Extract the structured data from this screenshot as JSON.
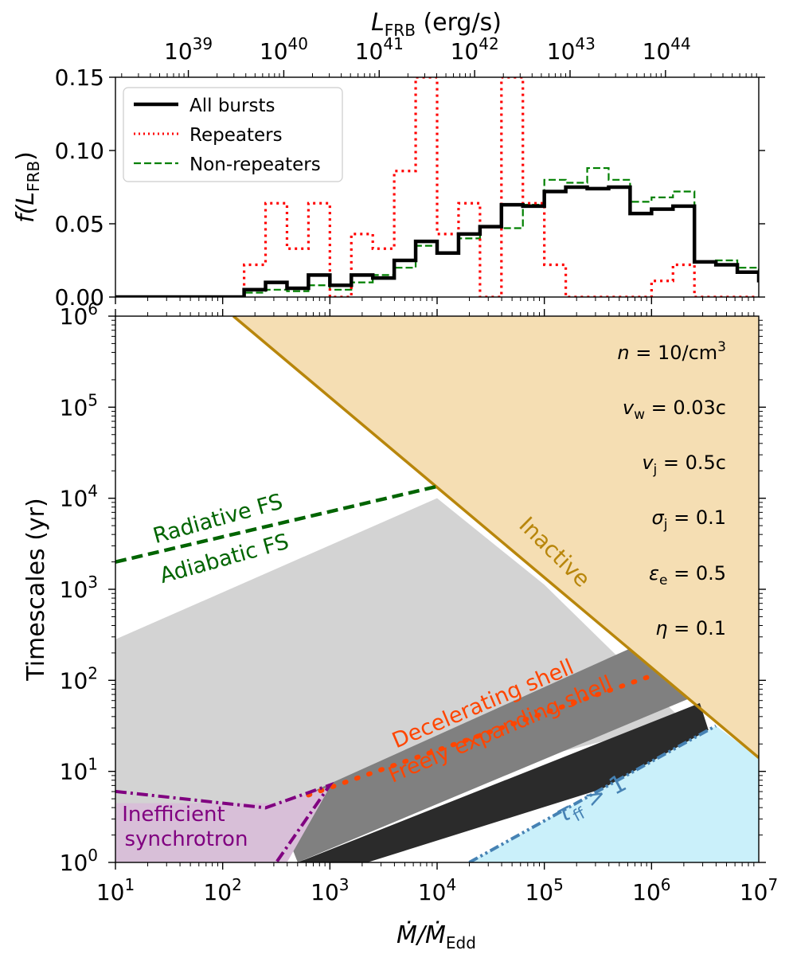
{
  "chart_data": [
    {
      "type": "step-histogram",
      "xlabel_main": "L",
      "xlabel_sub": "FRB",
      "xlabel_unit": " (erg/s)",
      "ylabel_main": "f(L",
      "ylabel_sub": "FRB",
      "ylabel_close": ")",
      "xscale": "log",
      "xlim": [
        1,
        7
      ],
      "xlim_note": "log10 of Mdot/Mdot_Edd (shared bottom axis)",
      "ylim": [
        0,
        0.15
      ],
      "yticks": [
        "0.00",
        "0.05",
        "0.10",
        "0.15"
      ],
      "top_axis_ticks": [
        {
          "exp": "39",
          "log_mdot": 1.68
        },
        {
          "exp": "40",
          "log_mdot": 2.57
        },
        {
          "exp": "41",
          "log_mdot": 3.46
        },
        {
          "exp": "42",
          "log_mdot": 4.35
        },
        {
          "exp": "43",
          "log_mdot": 5.25
        },
        {
          "exp": "44",
          "log_mdot": 6.14
        }
      ],
      "legend": {
        "position": "upper-left",
        "entries": [
          "All bursts",
          "Repeaters",
          "Non-repeaters"
        ]
      },
      "bin_edges_log": [
        1.0,
        2.2,
        2.4,
        2.6,
        2.8,
        3.0,
        3.2,
        3.4,
        3.6,
        3.8,
        4.0,
        4.2,
        4.4,
        4.6,
        4.8,
        5.0,
        5.2,
        5.4,
        5.6,
        5.8,
        6.0,
        6.2,
        6.4,
        6.6,
        6.8,
        7.0
      ],
      "series": [
        {
          "name": "All bursts",
          "color": "#000000",
          "style": "solid",
          "values": [
            0.0,
            0.005,
            0.01,
            0.006,
            0.015,
            0.008,
            0.015,
            0.013,
            0.025,
            0.038,
            0.03,
            0.043,
            0.048,
            0.063,
            0.062,
            0.072,
            0.075,
            0.074,
            0.075,
            0.057,
            0.06,
            0.062,
            0.024,
            0.022,
            0.017,
            0.01
          ]
        },
        {
          "name": "Repeaters",
          "color": "#ff0000",
          "style": "dotted",
          "values": [
            0.0,
            0.022,
            0.064,
            0.033,
            0.064,
            0.0,
            0.043,
            0.033,
            0.086,
            0.15,
            0.043,
            0.064,
            0.0,
            0.15,
            0.064,
            0.022,
            0.0,
            0.0,
            0.0,
            0.0,
            0.011,
            0.022,
            0.0,
            0.0,
            0.0,
            0.0
          ]
        },
        {
          "name": "Non-repeaters",
          "color": "#008000",
          "style": "dashed",
          "values": [
            0.0,
            0.003,
            0.005,
            0.004,
            0.008,
            0.005,
            0.01,
            0.015,
            0.02,
            0.035,
            0.03,
            0.04,
            0.048,
            0.047,
            0.063,
            0.08,
            0.078,
            0.088,
            0.08,
            0.065,
            0.068,
            0.072,
            0.024,
            0.025,
            0.02,
            0.012
          ]
        }
      ]
    },
    {
      "type": "area",
      "xlabel": "Ṁ/Ṁ_Edd",
      "ylabel": "Timescales (yr)",
      "xscale": "log",
      "yscale": "log",
      "xlim_log": [
        1,
        7
      ],
      "ylim_log": [
        0,
        6
      ],
      "x_ticks": [
        "1",
        "2",
        "3",
        "4",
        "5",
        "6",
        "7"
      ],
      "y_ticks": [
        "0",
        "1",
        "2",
        "3",
        "4",
        "5",
        "6"
      ],
      "tick_base": "10",
      "regions": [
        {
          "name": "Inactive",
          "color": "#f5deb3",
          "boundary_log": [
            [
              2.1,
              6.0
            ],
            [
              7.0,
              1.15
            ]
          ]
        },
        {
          "name": "Light grey (radiative FS cooling)",
          "color": "#d3d3d3",
          "polygon_log": [
            [
              1.0,
              0.0
            ],
            [
              1.0,
              2.45
            ],
            [
              4.0,
              4.0
            ],
            [
              5.0,
              3.05
            ],
            [
              6.3,
              1.55
            ]
          ]
        },
        {
          "name": "Dark grey (decelerating)",
          "color": "#808080",
          "polygon_log": [
            [
              2.7,
              0.0
            ],
            [
              2.5,
              0.6
            ],
            [
              5.8,
              2.35
            ],
            [
              6.35,
              1.8
            ]
          ]
        },
        {
          "name": "Black (freely expanding)",
          "color": "#2b2b2b",
          "polygon_log": [
            [
              2.7,
              0.0
            ],
            [
              6.45,
              1.75
            ],
            [
              6.6,
              1.2
            ],
            [
              3.35,
              0.0
            ]
          ]
        },
        {
          "name": "Inefficient synchrotron",
          "color": "#d8bfd8",
          "polygon_log": [
            [
              1.0,
              0.0
            ],
            [
              1.0,
              0.65
            ],
            [
              2.5,
              0.65
            ],
            [
              3.0,
              0.83
            ],
            [
              2.6,
              0.0
            ]
          ]
        },
        {
          "name": "τ_ff > 1",
          "color": "#caf0fa",
          "polygon_log": [
            [
              4.3,
              0.0
            ],
            [
              6.6,
              1.5
            ],
            [
              7.0,
              1.15
            ],
            [
              7.0,
              0.0
            ]
          ]
        }
      ],
      "lines": [
        {
          "name": "Inactive boundary",
          "color": "#b8860b",
          "style": "solid",
          "points_log": [
            [
              2.1,
              6.0
            ],
            [
              7.0,
              1.15
            ]
          ]
        },
        {
          "name": "Radiative/Adiabatic FS",
          "color": "#006400",
          "style": "dashed",
          "points_log": [
            [
              1.0,
              3.3
            ],
            [
              4.0,
              4.13
            ]
          ]
        },
        {
          "name": "Decelerating/Freely expanding",
          "color": "#ff4500",
          "style": "dotted",
          "points_log": [
            [
              2.8,
              0.74
            ],
            [
              6.0,
              2.05
            ]
          ]
        },
        {
          "name": "Inefficient synchrotron",
          "color": "#800080",
          "style": "dashdot",
          "points_log": [
            [
              1.0,
              0.78
            ],
            [
              2.4,
              0.6
            ],
            [
              3.0,
              0.85
            ],
            [
              2.5,
              0.0
            ]
          ]
        },
        {
          "name": "τ_ff > 1 boundary",
          "color": "#4682b4",
          "style": "dashdotdot",
          "points_log": [
            [
              4.3,
              0.0
            ],
            [
              6.6,
              1.5
            ]
          ]
        }
      ],
      "region_labels": {
        "inactive": "Inactive",
        "radiative": "Radiative FS",
        "adiabatic": "Adiabatic FS",
        "decelerating": "Decelerating shell",
        "freely": "Freely expanding shell",
        "inefficient_1": "Inefficient",
        "inefficient_2": "synchrotron",
        "tau_main": "τ",
        "tau_sub": "ff",
        "tau_rest": " > 1"
      },
      "parameters": [
        {
          "sym": "n",
          "sub": "",
          "rhs": " = 10/cm",
          "sup": "3"
        },
        {
          "sym": "v",
          "sub": "w",
          "rhs": " = 0.03c",
          "sup": ""
        },
        {
          "sym": "v",
          "sub": "j",
          "rhs": " = 0.5c",
          "sup": ""
        },
        {
          "sym": "σ",
          "sub": "j",
          "rhs": " = 0.1",
          "sup": ""
        },
        {
          "sym": "ε",
          "sub": "e",
          "rhs": " = 0.5",
          "sup": ""
        },
        {
          "sym": "η",
          "sub": "",
          "rhs": " = 0.1",
          "sup": ""
        }
      ]
    }
  ]
}
